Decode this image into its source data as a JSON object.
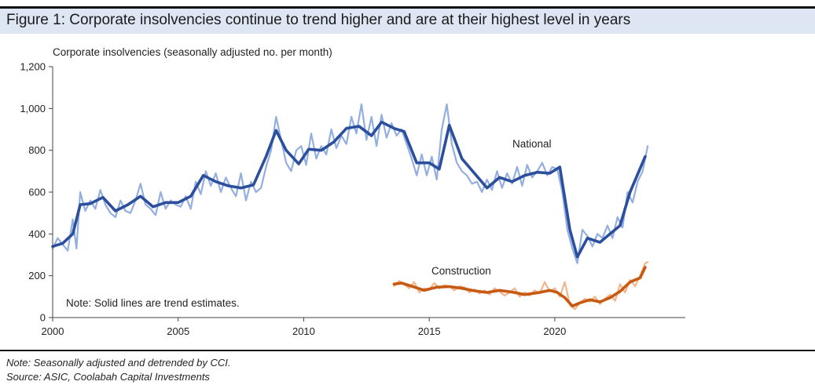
{
  "figure": {
    "title": "Figure 1: Corporate insolvencies continue to trend higher and are at their highest level in years"
  },
  "footer": {
    "note": "Note: Seasonally adjusted and detrended by CCI.",
    "source": "Source: ASIC, Coolabah Capital Investments"
  },
  "colors": {
    "national_trend": "#2b4f9c",
    "national_raw": "#93aee0",
    "construction_trend": "#c65a12",
    "construction_raw": "#f2b48a",
    "title_band": "#dfe6f3"
  },
  "chart_data": {
    "type": "line",
    "ylabel": "Corporate insolvencies (seasonally adjusted no. per month)",
    "ylim": [
      0,
      1200
    ],
    "xlim": [
      2000,
      2025.2
    ],
    "yticks": [
      0,
      200,
      400,
      600,
      800,
      1000,
      1200
    ],
    "ytick_labels": [
      "0",
      "200",
      "400",
      "600",
      "800",
      "1,000",
      "1,200"
    ],
    "xticks": [
      2000,
      2005,
      2010,
      2015,
      2020
    ],
    "xtick_labels": [
      "2000",
      "2005",
      "2010",
      "2015",
      "2020"
    ],
    "grid": false,
    "annotation": "Note: Solid lines are trend estimates.",
    "series": [
      {
        "name": "National",
        "style": "trend",
        "x": [
          2000.0,
          2000.4,
          2000.8,
          2001.1,
          2001.5,
          2002.0,
          2002.5,
          2003.0,
          2003.5,
          2004.0,
          2004.5,
          2005.0,
          2005.5,
          2006.0,
          2006.5,
          2007.0,
          2007.5,
          2008.0,
          2008.5,
          2008.9,
          2009.3,
          2009.8,
          2010.2,
          2010.7,
          2011.2,
          2011.7,
          2012.2,
          2012.7,
          2013.1,
          2013.6,
          2014.0,
          2014.5,
          2015.0,
          2015.4,
          2015.8,
          2016.3,
          2016.8,
          2017.3,
          2017.8,
          2018.3,
          2018.8,
          2019.3,
          2019.8,
          2020.2,
          2020.6,
          2020.9,
          2021.3,
          2021.8,
          2022.2,
          2022.6,
          2023.0,
          2023.6
        ],
        "y": [
          340,
          355,
          400,
          540,
          545,
          575,
          510,
          540,
          580,
          530,
          550,
          550,
          580,
          680,
          650,
          630,
          620,
          635,
          770,
          895,
          800,
          735,
          805,
          800,
          840,
          905,
          915,
          870,
          935,
          905,
          890,
          740,
          740,
          710,
          920,
          760,
          690,
          620,
          670,
          650,
          680,
          695,
          690,
          720,
          420,
          290,
          380,
          360,
          400,
          440,
          600,
          770
        ]
      },
      {
        "name": "National",
        "style": "raw",
        "x": [
          2000.0,
          2000.2,
          2000.4,
          2000.6,
          2000.8,
          2000.95,
          2001.1,
          2001.3,
          2001.5,
          2001.7,
          2001.9,
          2002.1,
          2002.3,
          2002.5,
          2002.7,
          2002.9,
          2003.1,
          2003.3,
          2003.5,
          2003.7,
          2003.9,
          2004.1,
          2004.3,
          2004.5,
          2004.7,
          2004.9,
          2005.1,
          2005.3,
          2005.5,
          2005.7,
          2005.9,
          2006.1,
          2006.3,
          2006.5,
          2006.7,
          2006.9,
          2007.1,
          2007.3,
          2007.5,
          2007.7,
          2007.9,
          2008.1,
          2008.3,
          2008.5,
          2008.7,
          2008.9,
          2009.1,
          2009.3,
          2009.5,
          2009.7,
          2009.9,
          2010.1,
          2010.3,
          2010.5,
          2010.7,
          2010.9,
          2011.1,
          2011.3,
          2011.5,
          2011.7,
          2011.9,
          2012.1,
          2012.3,
          2012.5,
          2012.7,
          2012.9,
          2013.1,
          2013.3,
          2013.5,
          2013.7,
          2013.9,
          2014.1,
          2014.3,
          2014.5,
          2014.7,
          2014.9,
          2015.1,
          2015.3,
          2015.5,
          2015.7,
          2015.9,
          2016.1,
          2016.3,
          2016.5,
          2016.7,
          2016.9,
          2017.1,
          2017.3,
          2017.5,
          2017.7,
          2017.9,
          2018.1,
          2018.3,
          2018.5,
          2018.7,
          2018.9,
          2019.1,
          2019.3,
          2019.5,
          2019.7,
          2019.9,
          2020.1,
          2020.3,
          2020.5,
          2020.7,
          2020.9,
          2021.1,
          2021.3,
          2021.5,
          2021.7,
          2021.9,
          2022.1,
          2022.3,
          2022.5,
          2022.7,
          2022.9,
          2023.1,
          2023.3,
          2023.5,
          2023.7
        ],
        "y": [
          330,
          380,
          350,
          320,
          470,
          330,
          600,
          510,
          560,
          520,
          610,
          540,
          500,
          480,
          560,
          510,
          500,
          560,
          640,
          540,
          520,
          490,
          600,
          520,
          560,
          540,
          530,
          580,
          520,
          650,
          590,
          700,
          630,
          690,
          600,
          670,
          620,
          580,
          690,
          560,
          650,
          600,
          620,
          720,
          800,
          960,
          850,
          740,
          700,
          800,
          820,
          730,
          880,
          760,
          820,
          780,
          900,
          810,
          870,
          830,
          960,
          880,
          1020,
          850,
          960,
          820,
          970,
          860,
          930,
          870,
          900,
          830,
          760,
          680,
          780,
          680,
          770,
          660,
          900,
          1020,
          830,
          740,
          700,
          680,
          640,
          650,
          600,
          660,
          610,
          700,
          620,
          690,
          640,
          720,
          630,
          730,
          670,
          700,
          740,
          680,
          720,
          710,
          600,
          420,
          330,
          260,
          420,
          390,
          340,
          400,
          380,
          440,
          380,
          480,
          430,
          600,
          550,
          650,
          700,
          820
        ]
      },
      {
        "name": "Construction",
        "style": "trend",
        "x": [
          2013.6,
          2013.9,
          2014.3,
          2014.8,
          2015.3,
          2015.8,
          2016.3,
          2016.8,
          2017.3,
          2017.8,
          2018.3,
          2018.8,
          2019.3,
          2019.8,
          2020.1,
          2020.4,
          2020.7,
          2021.0,
          2021.4,
          2021.8,
          2022.2,
          2022.6,
          2023.0,
          2023.4,
          2023.6
        ],
        "y": [
          160,
          165,
          150,
          130,
          145,
          148,
          140,
          128,
          120,
          130,
          122,
          110,
          118,
          130,
          120,
          95,
          55,
          70,
          85,
          75,
          95,
          125,
          170,
          190,
          240
        ]
      },
      {
        "name": "Construction",
        "style": "raw",
        "x": [
          2013.6,
          2013.8,
          2014.0,
          2014.2,
          2014.4,
          2014.6,
          2014.8,
          2015.0,
          2015.2,
          2015.4,
          2015.6,
          2015.8,
          2016.0,
          2016.2,
          2016.4,
          2016.6,
          2016.8,
          2017.0,
          2017.2,
          2017.4,
          2017.6,
          2017.8,
          2018.0,
          2018.2,
          2018.4,
          2018.6,
          2018.8,
          2019.0,
          2019.2,
          2019.4,
          2019.6,
          2019.8,
          2020.0,
          2020.2,
          2020.4,
          2020.6,
          2020.8,
          2021.0,
          2021.2,
          2021.4,
          2021.6,
          2021.8,
          2022.0,
          2022.2,
          2022.4,
          2022.6,
          2022.8,
          2023.0,
          2023.2,
          2023.4,
          2023.6,
          2023.7
        ],
        "y": [
          150,
          175,
          160,
          140,
          170,
          120,
          140,
          135,
          165,
          140,
          155,
          150,
          130,
          150,
          145,
          120,
          135,
          115,
          130,
          110,
          140,
          125,
          105,
          120,
          140,
          100,
          120,
          105,
          130,
          115,
          170,
          125,
          140,
          100,
          170,
          60,
          40,
          70,
          90,
          75,
          100,
          65,
          90,
          110,
          80,
          160,
          120,
          180,
          150,
          200,
          260,
          265
        ]
      }
    ],
    "series_labels": [
      "National",
      "Construction"
    ]
  }
}
